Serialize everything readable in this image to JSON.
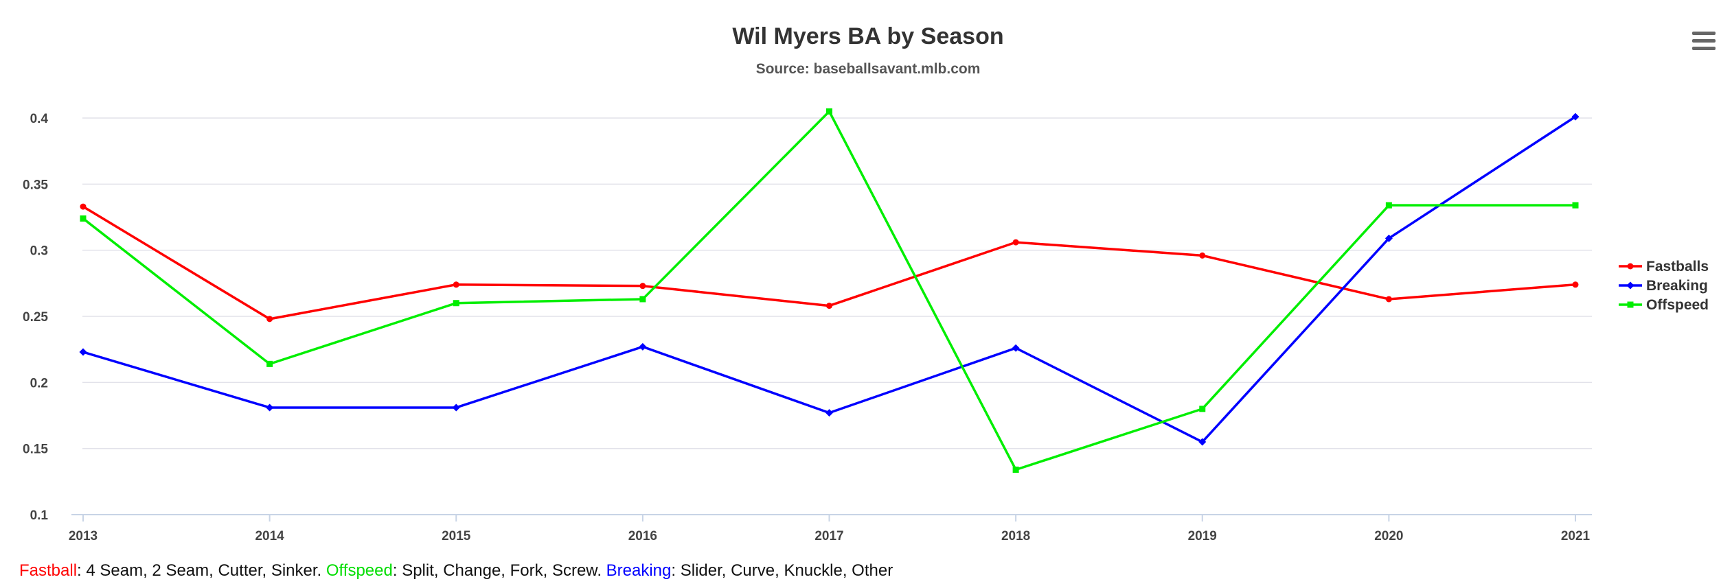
{
  "menu": {
    "icon": "hamburger-menu-icon"
  },
  "footer": {
    "fastball_label": "Fastball",
    "fastball_text": ": 4 Seam, 2 Seam, Cutter, Sinker. ",
    "offspeed_label": "Offspeed",
    "offspeed_text": ": Split, Change, Fork, Screw. ",
    "breaking_label": "Breaking",
    "breaking_text": ": Slider, Curve, Knuckle, Other"
  },
  "chart_data": {
    "type": "line",
    "title": "Wil Myers BA by Season",
    "subtitle": "Source: baseballsavant.mlb.com",
    "xlabel": "",
    "ylabel": "",
    "categories": [
      "2013",
      "2014",
      "2015",
      "2016",
      "2017",
      "2018",
      "2019",
      "2020",
      "2021"
    ],
    "yticks": [
      "0.1",
      "0.15",
      "0.2",
      "0.25",
      "0.3",
      "0.35",
      "0.4"
    ],
    "ylim": [
      0.1,
      0.4
    ],
    "grid": true,
    "legend_position": "right",
    "series": [
      {
        "name": "Fastballs",
        "color": "#ff0000",
        "marker": "circle",
        "values": [
          0.333,
          0.248,
          0.274,
          0.273,
          0.258,
          0.306,
          0.296,
          0.263,
          0.274
        ]
      },
      {
        "name": "Breaking",
        "color": "#0000ff",
        "marker": "diamond",
        "values": [
          0.223,
          0.181,
          0.181,
          0.227,
          0.177,
          0.226,
          0.155,
          0.309,
          0.401
        ]
      },
      {
        "name": "Offspeed",
        "color": "#00ee00",
        "marker": "square",
        "values": [
          0.324,
          0.214,
          0.26,
          0.263,
          0.405,
          0.134,
          0.18,
          0.334,
          0.334
        ]
      }
    ]
  }
}
